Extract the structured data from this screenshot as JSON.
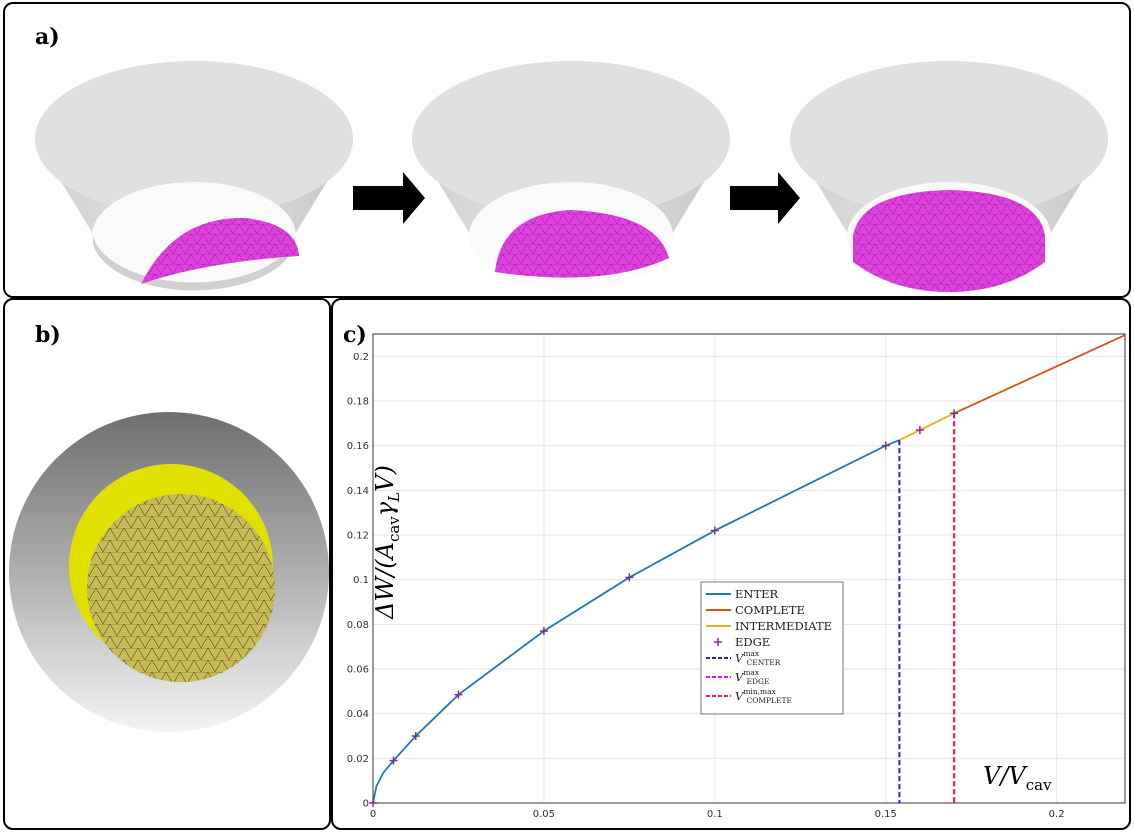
{
  "panels": {
    "a_label": "a)",
    "b_label": "b)",
    "c_label": "c)"
  },
  "colors": {
    "enter": "#1f77b4",
    "complete": "#d95319",
    "intermediate": "#edb120",
    "edge_marker": "#7e2f8e",
    "v_center": "#2020d0",
    "v_edge": "#ff00ff",
    "v_complete": "#ff1a4a",
    "droplet": "#e040e0",
    "substrate_yellow": "#e2e000"
  },
  "chart_data": {
    "type": "line",
    "xlim": [
      0,
      0.22
    ],
    "ylim": [
      0,
      0.21
    ],
    "xticks": [
      "0",
      "0.05",
      "0.1",
      "0.15",
      "0.2"
    ],
    "xtick_values": [
      0,
      0.05,
      0.1,
      0.15,
      0.2
    ],
    "yticks": [
      "0",
      "0.02",
      "0.04",
      "0.06",
      "0.08",
      "0.1",
      "0.12",
      "0.14",
      "0.16",
      "0.18",
      "0.2"
    ],
    "ytick_values": [
      0,
      0.02,
      0.04,
      0.06,
      0.08,
      0.1,
      0.12,
      0.14,
      0.16,
      0.18,
      0.2
    ],
    "ylabel": {
      "prefix": "ΔW/(A",
      "sub1": "cav",
      "mid": "γ",
      "sub2": "L",
      "suffix": "V)"
    },
    "xlabel": {
      "main": "V/V",
      "sub": "cav"
    },
    "grid": true,
    "legend_placement": "center-right",
    "series": [
      {
        "name": "ENTER",
        "x": [
          0,
          0.001,
          0.003,
          0.006,
          0.0125,
          0.025,
          0.05,
          0.075,
          0.1,
          0.125,
          0.15,
          0.154
        ],
        "y": [
          0,
          0.0075,
          0.0135,
          0.019,
          0.03,
          0.0485,
          0.077,
          0.101,
          0.122,
          0.141,
          0.16,
          0.1625
        ]
      },
      {
        "name": "COMPLETE",
        "x": [
          0.17,
          0.22
        ],
        "y": [
          0.1745,
          0.2095
        ]
      },
      {
        "name": "INTERMEDIATE",
        "x": [
          0.154,
          0.16,
          0.17
        ],
        "y": [
          0.1625,
          0.167,
          0.1745
        ]
      }
    ],
    "edge_points": {
      "name": "EDGE",
      "x": [
        0,
        0.006,
        0.0125,
        0.025,
        0.05,
        0.075,
        0.1,
        0.15,
        0.16,
        0.17
      ],
      "y": [
        0,
        0.019,
        0.03,
        0.0485,
        0.077,
        0.101,
        0.122,
        0.16,
        0.167,
        0.1745
      ]
    },
    "vlines": [
      {
        "name": "V_CENTER^max",
        "x": 0.154,
        "y_top": 0.1625
      },
      {
        "name": "V_EDGE^max",
        "x": 0.17,
        "y_top": 0.1745
      },
      {
        "name": "V_COMPLETE^min,max",
        "x": 0.17,
        "y_top": 0.1745
      }
    ],
    "legend": [
      {
        "kind": "line",
        "label": "ENTER",
        "color_key": "enter"
      },
      {
        "kind": "line",
        "label": "COMPLETE",
        "color_key": "complete"
      },
      {
        "kind": "line",
        "label": "INTERMEDIATE",
        "color_key": "intermediate"
      },
      {
        "kind": "marker",
        "label": "EDGE",
        "color_key": "edge_marker"
      },
      {
        "kind": "dash",
        "main": "V",
        "sup": "max",
        "sub": "CENTER",
        "color_key": "v_center"
      },
      {
        "kind": "dash",
        "main": "V",
        "sup": "max",
        "sub": "EDGE",
        "color_key": "v_edge"
      },
      {
        "kind": "dash",
        "main": "V",
        "sup": "min,max",
        "sub": "COMPLETE",
        "color_key": "v_complete"
      }
    ]
  }
}
